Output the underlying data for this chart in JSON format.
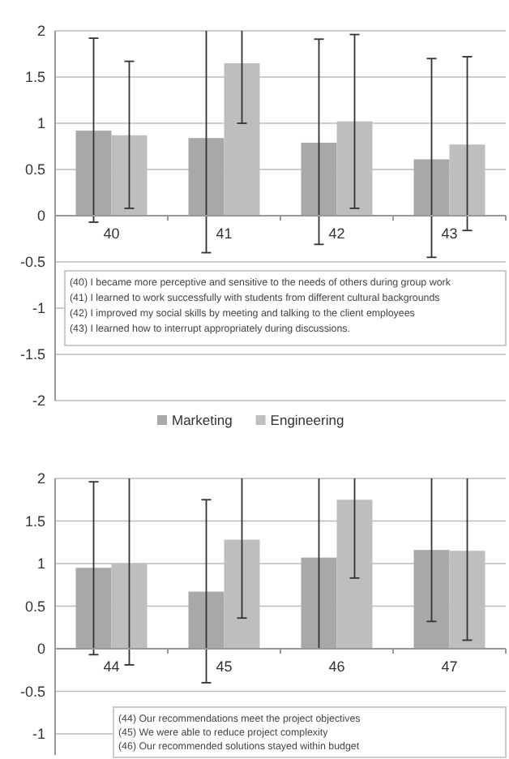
{
  "chart_data": [
    {
      "type": "bar",
      "categories": [
        "40",
        "41",
        "42",
        "43"
      ],
      "series": [
        {
          "name": "Marketing",
          "color": "#a8a8a8",
          "values": [
            0.92,
            0.84,
            0.79,
            0.61
          ],
          "errors": [
            [
              -0.07,
              1.92
            ],
            [
              -0.4,
              2
            ],
            [
              -0.31,
              1.91
            ],
            [
              -0.45,
              1.7
            ]
          ]
        },
        {
          "name": "Engineering",
          "color": "#bebebe",
          "values": [
            0.87,
            1.65,
            1.02,
            0.77
          ],
          "errors": [
            [
              0.08,
              1.67
            ],
            [
              1.0,
              2
            ],
            [
              0.08,
              1.96
            ],
            [
              -0.16,
              1.72
            ]
          ]
        }
      ],
      "ylim": [
        -2,
        2
      ],
      "yticks": [
        -2,
        -1.5,
        -1,
        -0.5,
        0,
        0.5,
        1,
        1.5,
        2
      ],
      "grid": "y",
      "legend": "bottom",
      "annotations": [
        "(40) I became more perceptive and sensitive to the needs of others during group work",
        "(41) I learned to work successfully with students from different cultural backgrounds",
        "(42) I improved my social skills by meeting and talking to the client employees",
        "(43) I learned how to interrupt appropriately during discussions."
      ]
    },
    {
      "type": "bar",
      "categories": [
        "44",
        "45",
        "46",
        "47"
      ],
      "series": [
        {
          "color": "#a8a8a8",
          "values": [
            0.95,
            0.67,
            1.07,
            1.16
          ],
          "errors": [
            [
              -0.07,
              1.96
            ],
            [
              -0.4,
              1.75
            ],
            [
              0,
              2
            ],
            [
              0.32,
              2
            ]
          ]
        },
        {
          "color": "#bebebe",
          "values": [
            1.0,
            1.28,
            1.75,
            1.15
          ],
          "errors": [
            [
              -0.19,
              2
            ],
            [
              0.36,
              2
            ],
            [
              0.83,
              2
            ],
            [
              0.1,
              2
            ]
          ]
        }
      ],
      "ylim": [
        -1.25,
        2
      ],
      "yticks": [
        -1,
        -0.5,
        0,
        0.5,
        1,
        1.5,
        2
      ],
      "grid": "y",
      "annotations": [
        "(44) Our recommendations meet the project objectives",
        "(45) We were able to reduce project complexity",
        "(46) Our recommended solutions stayed within budget"
      ]
    }
  ]
}
